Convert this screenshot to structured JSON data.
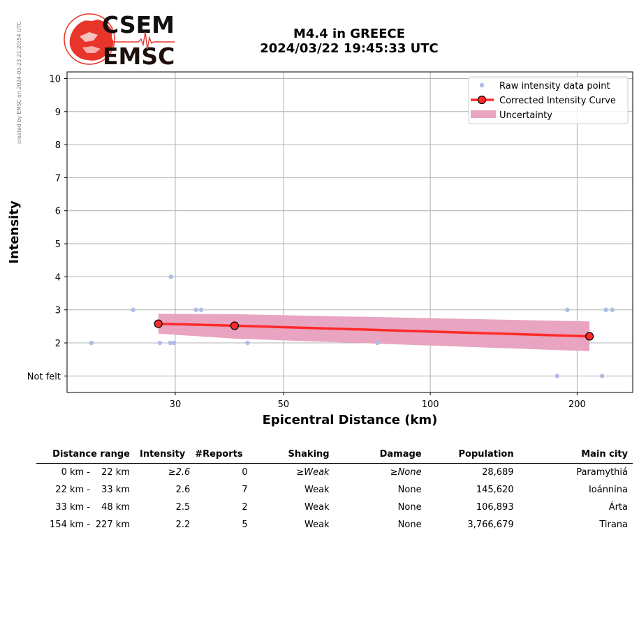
{
  "side_note": "created by EMSC on 2024-03-23 21:20:54 UTC",
  "logo": {
    "top": "CSEM",
    "bottom": "EMSC"
  },
  "chart_data": {
    "type": "scatter",
    "title": [
      "M4.4 in GREECE",
      "2024/03/22 19:45:33 UTC"
    ],
    "xlabel": "Epicentral Distance (km)",
    "ylabel": "Intensity",
    "x_scale": "log",
    "xlim": [
      18,
      260
    ],
    "ylim": [
      0.5,
      10.2
    ],
    "x_ticks": [
      30,
      50,
      100,
      200
    ],
    "y_ticks": [
      {
        "value": 1,
        "label": "Not felt"
      },
      {
        "value": 2,
        "label": "2"
      },
      {
        "value": 3,
        "label": "3"
      },
      {
        "value": 4,
        "label": "4"
      },
      {
        "value": 5,
        "label": "5"
      },
      {
        "value": 6,
        "label": "6"
      },
      {
        "value": 7,
        "label": "7"
      },
      {
        "value": 8,
        "label": "8"
      },
      {
        "value": 9,
        "label": "9"
      },
      {
        "value": 10,
        "label": "10"
      }
    ],
    "grid": true,
    "legend": {
      "position": "top-right",
      "entries": [
        "Raw intensity data point",
        "Corrected Intensity Curve",
        "Uncertainty"
      ]
    },
    "raw_points": [
      {
        "x": 20.2,
        "y": 2
      },
      {
        "x": 24.6,
        "y": 3
      },
      {
        "x": 27.9,
        "y": 2
      },
      {
        "x": 29.3,
        "y": 2
      },
      {
        "x": 29.4,
        "y": 4
      },
      {
        "x": 29.8,
        "y": 2
      },
      {
        "x": 33.1,
        "y": 3
      },
      {
        "x": 33.9,
        "y": 3
      },
      {
        "x": 42.2,
        "y": 2
      },
      {
        "x": 77.9,
        "y": 2
      },
      {
        "x": 182,
        "y": 1
      },
      {
        "x": 191,
        "y": 3
      },
      {
        "x": 225,
        "y": 1
      },
      {
        "x": 229,
        "y": 3
      },
      {
        "x": 236,
        "y": 3
      }
    ],
    "curve": [
      {
        "x": 27.7,
        "y": 2.58
      },
      {
        "x": 39.7,
        "y": 2.52
      },
      {
        "x": 212,
        "y": 2.2
      }
    ],
    "uncertainty": {
      "x": [
        27.7,
        39.7,
        212
      ],
      "upper": [
        2.88,
        2.87,
        2.65
      ],
      "lower": [
        2.28,
        2.13,
        1.75
      ]
    },
    "colors": {
      "raw": "#aebde8",
      "curve": "#ff2a2a",
      "marker": "#ff2a2a",
      "band": "#e8a4c0",
      "grid": "#b0b0b0"
    }
  },
  "table": {
    "headers": [
      "Distance range",
      "Intensity",
      "#Reports",
      "Shaking",
      "Damage",
      "Population",
      "Main city"
    ],
    "rows": [
      {
        "from": "0 km -",
        "to": "22 km",
        "intensity": "≥2.6",
        "reports": "0",
        "shaking": "≥Weak",
        "damage": "≥None",
        "population": "28,689",
        "city": "Paramythiá"
      },
      {
        "from": "22 km -",
        "to": "33 km",
        "intensity": "2.6",
        "reports": "7",
        "shaking": "Weak",
        "damage": "None",
        "population": "145,620",
        "city": "Ioánnina"
      },
      {
        "from": "33 km -",
        "to": "48 km",
        "intensity": "2.5",
        "reports": "2",
        "shaking": "Weak",
        "damage": "None",
        "population": "106,893",
        "city": "Árta"
      },
      {
        "from": "154 km -",
        "to": "227 km",
        "intensity": "2.2",
        "reports": "5",
        "shaking": "Weak",
        "damage": "None",
        "population": "3,766,679",
        "city": "Tirana"
      }
    ]
  }
}
